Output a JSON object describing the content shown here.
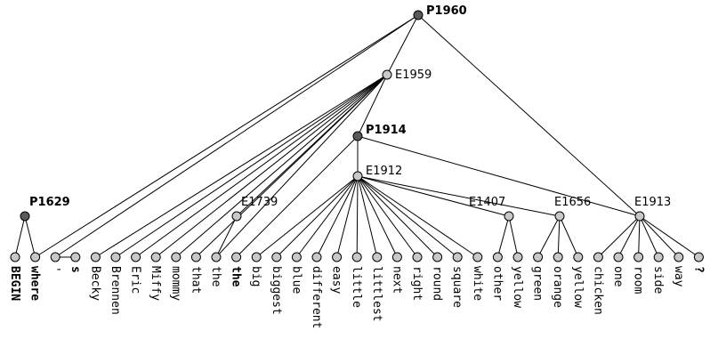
{
  "nodes": {
    "P1960": {
      "label": "P1960",
      "kind": "P"
    },
    "E1959": {
      "label": "E1959",
      "kind": "E"
    },
    "P1914": {
      "label": "P1914",
      "kind": "P"
    },
    "E1912": {
      "label": "E1912",
      "kind": "E"
    },
    "P1629": {
      "label": "P1629",
      "kind": "P"
    },
    "E1739": {
      "label": "E1739",
      "kind": "E"
    },
    "E1407": {
      "label": "E1407",
      "kind": "E"
    },
    "E1656": {
      "label": "E1656",
      "kind": "E"
    },
    "E1913": {
      "label": "E1913",
      "kind": "E"
    }
  },
  "leaves": [
    {
      "word": "BEGIN",
      "bold": true
    },
    {
      "word": "where",
      "bold": true
    },
    {
      "word": "'",
      "bold": false
    },
    {
      "word": "s",
      "bold": true
    },
    {
      "word": "Becky",
      "bold": false
    },
    {
      "word": "Brennen",
      "bold": false
    },
    {
      "word": "Eric",
      "bold": false
    },
    {
      "word": "Miffy",
      "bold": false
    },
    {
      "word": "mommy",
      "bold": false
    },
    {
      "word": "that",
      "bold": false
    },
    {
      "word": "the",
      "bold": false
    },
    {
      "word": "the",
      "bold": true
    },
    {
      "word": "big",
      "bold": false
    },
    {
      "word": "biggest",
      "bold": false
    },
    {
      "word": "blue",
      "bold": false
    },
    {
      "word": "different",
      "bold": false
    },
    {
      "word": "easy",
      "bold": false
    },
    {
      "word": "little",
      "bold": false
    },
    {
      "word": "littlest",
      "bold": false
    },
    {
      "word": "next",
      "bold": false
    },
    {
      "word": "right",
      "bold": false
    },
    {
      "word": "round",
      "bold": false
    },
    {
      "word": "square",
      "bold": false
    },
    {
      "word": "white",
      "bold": false
    },
    {
      "word": "other",
      "bold": false
    },
    {
      "word": "yellow",
      "bold": false
    },
    {
      "word": "green",
      "bold": false
    },
    {
      "word": "orange",
      "bold": false
    },
    {
      "word": "yellow",
      "bold": false
    },
    {
      "word": "chicken",
      "bold": false
    },
    {
      "word": "one",
      "bold": false
    },
    {
      "word": "room",
      "bold": false
    },
    {
      "word": "side",
      "bold": false
    },
    {
      "word": "way",
      "bold": false
    },
    {
      "word": "?",
      "bold": true
    }
  ],
  "edges": [
    [
      "P1960",
      "E1959"
    ],
    [
      "P1960",
      "E1913"
    ],
    [
      "P1960",
      "L1"
    ],
    [
      "P1960",
      "L2"
    ],
    [
      "E1959",
      "P1914"
    ],
    [
      "E1959",
      "L4"
    ],
    [
      "E1959",
      "L5"
    ],
    [
      "E1959",
      "L6"
    ],
    [
      "E1959",
      "L7"
    ],
    [
      "E1959",
      "L8"
    ],
    [
      "E1959",
      "L9"
    ],
    [
      "E1959",
      "E1739"
    ],
    [
      "E1959",
      "L10"
    ],
    [
      "P1914",
      "E1912"
    ],
    [
      "P1914",
      "E1913"
    ],
    [
      "P1914",
      "L11"
    ],
    [
      "E1912",
      "L12"
    ],
    [
      "E1912",
      "L13"
    ],
    [
      "E1912",
      "L14"
    ],
    [
      "E1912",
      "L15"
    ],
    [
      "E1912",
      "L16"
    ],
    [
      "E1912",
      "L17"
    ],
    [
      "E1912",
      "L18"
    ],
    [
      "E1912",
      "L19"
    ],
    [
      "E1912",
      "L20"
    ],
    [
      "E1912",
      "L21"
    ],
    [
      "E1912",
      "L22"
    ],
    [
      "E1912",
      "L23"
    ],
    [
      "E1912",
      "E1407"
    ],
    [
      "E1912",
      "E1656"
    ],
    [
      "P1629",
      "L0"
    ],
    [
      "P1629",
      "L1"
    ],
    [
      "E1739",
      "L10"
    ],
    [
      "E1407",
      "L24"
    ],
    [
      "E1407",
      "L25"
    ],
    [
      "E1656",
      "L26"
    ],
    [
      "E1656",
      "L27"
    ],
    [
      "E1656",
      "L28"
    ],
    [
      "E1913",
      "L29"
    ],
    [
      "E1913",
      "L30"
    ],
    [
      "E1913",
      "L31"
    ],
    [
      "E1913",
      "L32"
    ],
    [
      "E1913",
      "L33"
    ],
    [
      "E1913",
      "L34"
    ],
    [
      "L2",
      "L3"
    ]
  ]
}
